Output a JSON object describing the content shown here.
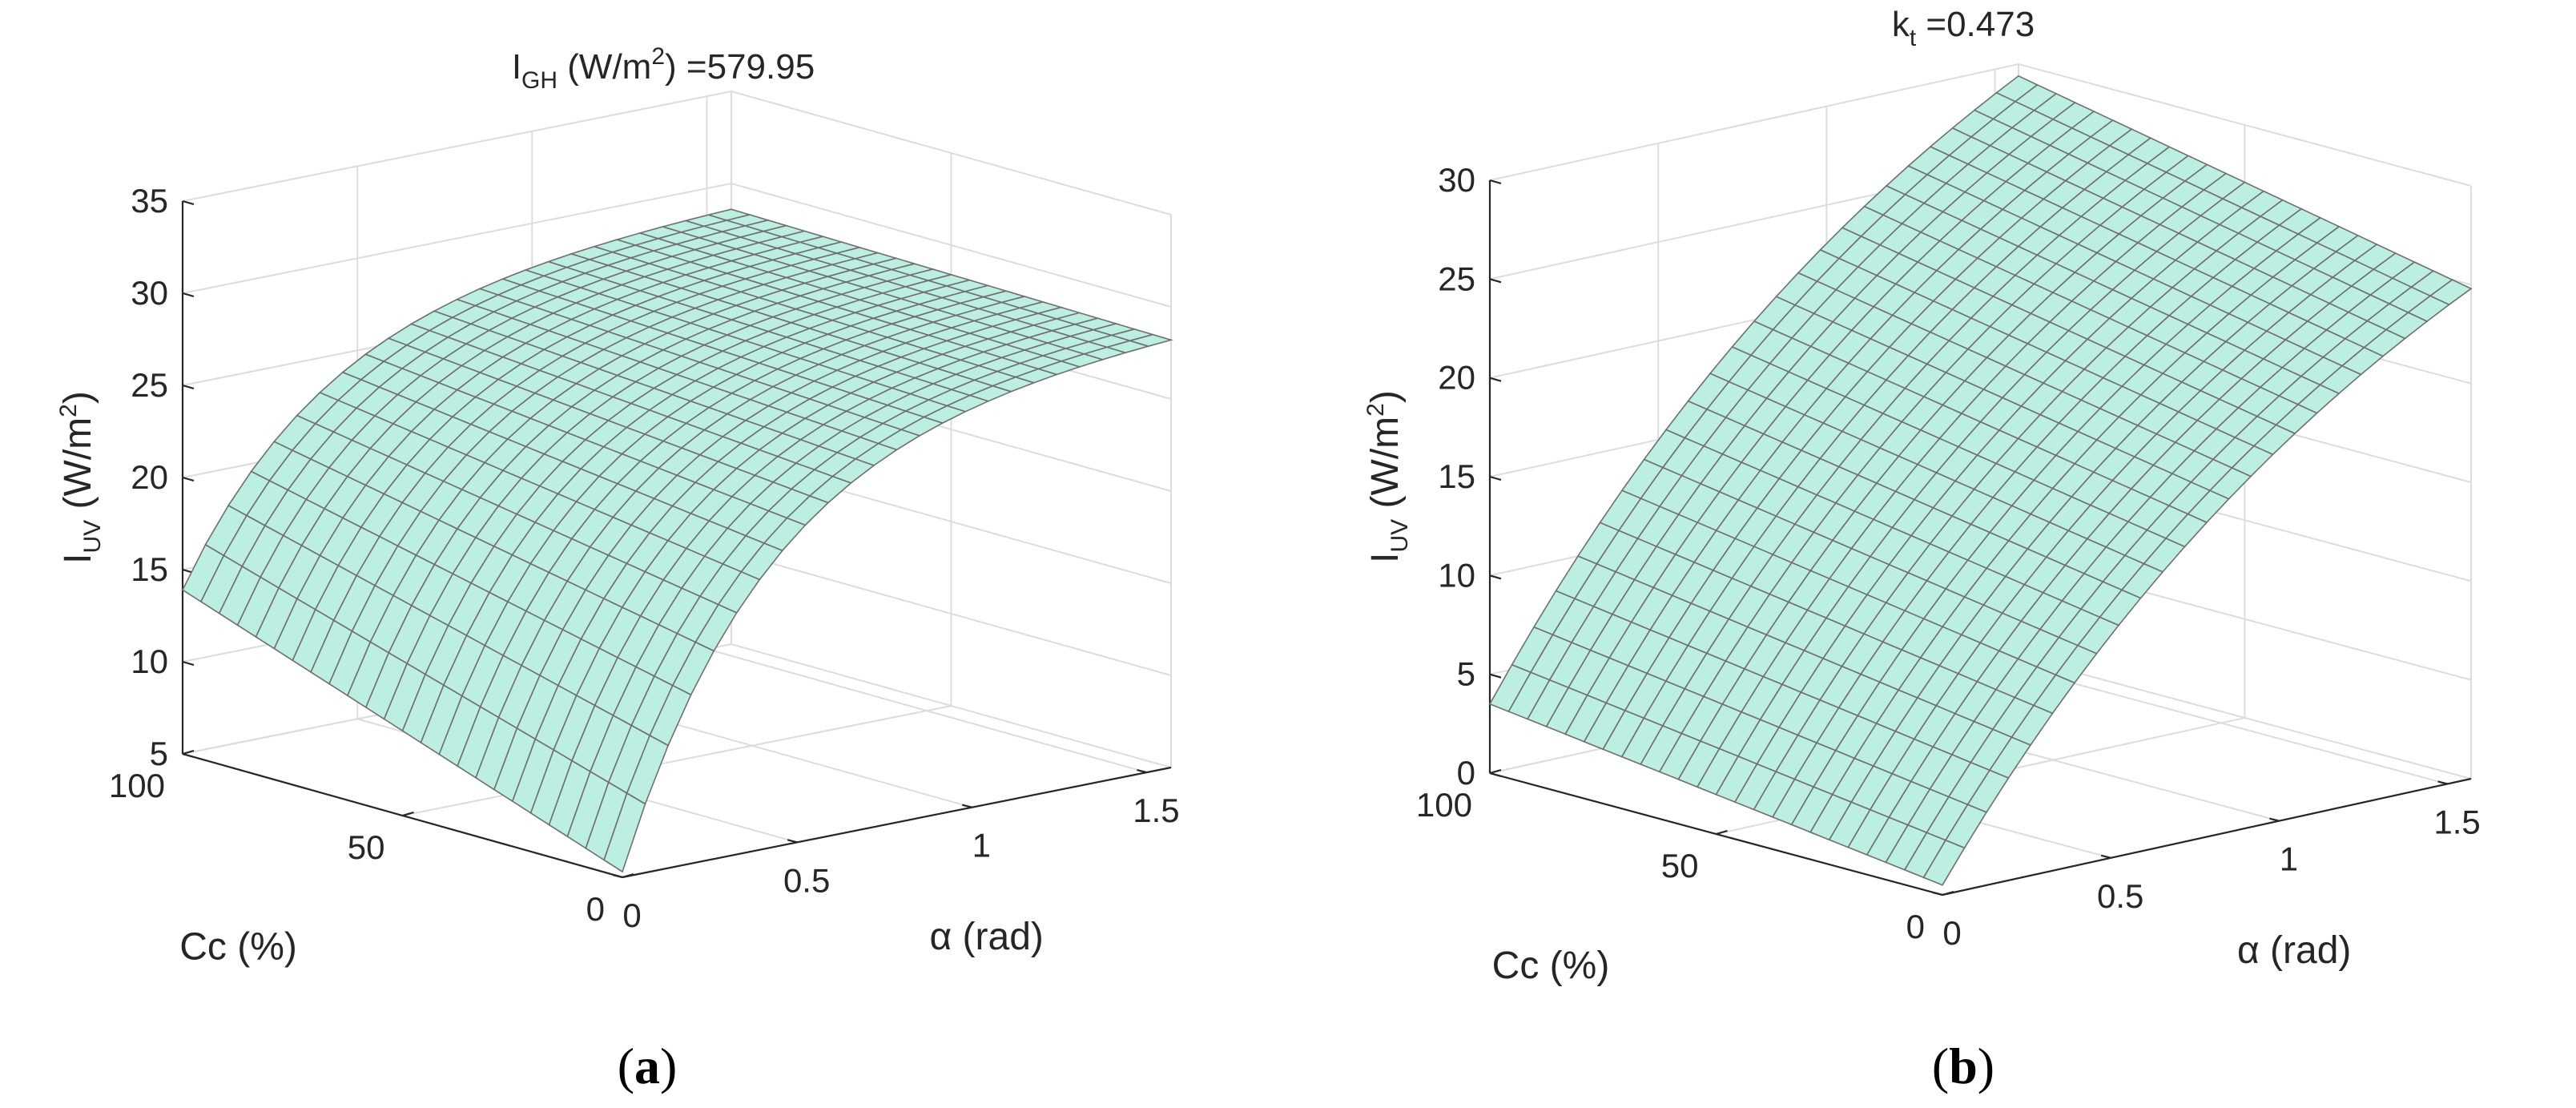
{
  "chart_data": [
    {
      "type": "surface",
      "panel": "(a)",
      "title": {
        "base": "I",
        "sub": "GH",
        "mid": " (W/m",
        "sup": "2",
        "end": ") =579.95"
      },
      "xlabel": "α (rad)",
      "ylabel": "Cc (%)",
      "zlabel": {
        "base": "I",
        "sub": "UV",
        "mid": " (W/m",
        "sup": "2",
        "end": ")"
      },
      "xlim": [
        0,
        1.57
      ],
      "ylim": [
        0,
        100
      ],
      "zlim": [
        5,
        35
      ],
      "xticks": [
        0,
        0.5,
        1,
        1.5
      ],
      "xtick_labels": [
        "0",
        "0.5",
        "1",
        "1.5"
      ],
      "yticks": [
        0,
        50,
        100
      ],
      "ytick_labels": [
        "0",
        "50",
        "100"
      ],
      "zticks": [
        5,
        10,
        15,
        20,
        25,
        30,
        35
      ],
      "ztick_labels": [
        "5",
        "10",
        "15",
        "20",
        "25",
        "30",
        "35"
      ],
      "corner_values": {
        "a0_c0": 5.3,
        "a0_c100": 13.9,
        "amax_c0": 28.2,
        "amax_c100": 28.6
      },
      "surface_model": "I = I(α,Cc) rising with α, concave, nearly flat in Cc at high α",
      "color": "#bdeee2"
    },
    {
      "type": "surface",
      "panel": "(b)",
      "title": {
        "base": "k",
        "sub": "t",
        "mid": " =0.473",
        "sup": "",
        "end": ""
      },
      "xlabel": "α (rad)",
      "ylabel": "Cc (%)",
      "zlabel": {
        "base": "I",
        "sub": "UV",
        "mid": " (W/m",
        "sup": "2",
        "end": ")"
      },
      "xlim": [
        0,
        1.57
      ],
      "ylim": [
        0,
        100
      ],
      "zlim": [
        0,
        30
      ],
      "xticks": [
        0,
        0.5,
        1,
        1.5
      ],
      "xtick_labels": [
        "0",
        "0.5",
        "1",
        "1.5"
      ],
      "yticks": [
        0,
        50,
        100
      ],
      "ytick_labels": [
        "0",
        "50",
        "100"
      ],
      "zticks": [
        0,
        5,
        10,
        15,
        20,
        25,
        30
      ],
      "ztick_labels": [
        "0",
        "5",
        "10",
        "15",
        "20",
        "25",
        "30"
      ],
      "corner_values": {
        "a0_c0": 0.5,
        "a0_c100": 3.5,
        "amax_c0": 24.8,
        "amax_c100": 29.4
      },
      "surface_model": "I rising with α, mildly concave, small increase with Cc",
      "color": "#bdeee2"
    }
  ],
  "captions": {
    "a": "a",
    "b": "b"
  }
}
